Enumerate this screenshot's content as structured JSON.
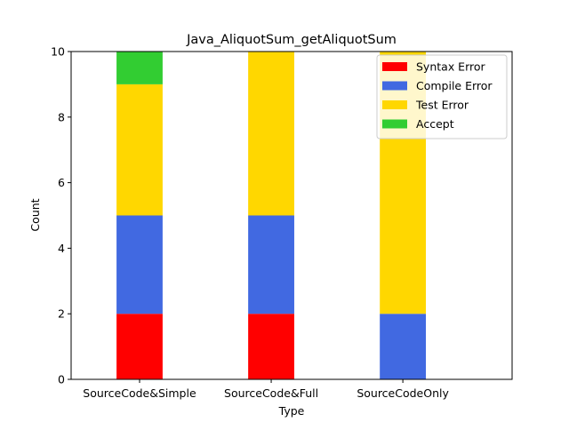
{
  "chart_data": {
    "type": "bar",
    "stacked": true,
    "title": "Java_AliquotSum_getAliquotSum",
    "xlabel": "Type",
    "ylabel": "Count",
    "ylim": [
      0,
      10
    ],
    "yticks": [
      0,
      2,
      4,
      6,
      8,
      10
    ],
    "categories": [
      "SourceCode&Simple",
      "SourceCode&Full",
      "SourceCodeOnly"
    ],
    "series": [
      {
        "name": "Syntax Error",
        "color": "#ff0000",
        "values": [
          2,
          2,
          0
        ]
      },
      {
        "name": "Compile Error",
        "color": "#4169e1",
        "values": [
          3,
          3,
          2
        ]
      },
      {
        "name": "Test Error",
        "color": "#ffd700",
        "values": [
          4,
          5,
          8
        ]
      },
      {
        "name": "Accept",
        "color": "#32cd32",
        "values": [
          1,
          0,
          0
        ]
      }
    ],
    "legend_position": "top-right",
    "grid": false
  }
}
